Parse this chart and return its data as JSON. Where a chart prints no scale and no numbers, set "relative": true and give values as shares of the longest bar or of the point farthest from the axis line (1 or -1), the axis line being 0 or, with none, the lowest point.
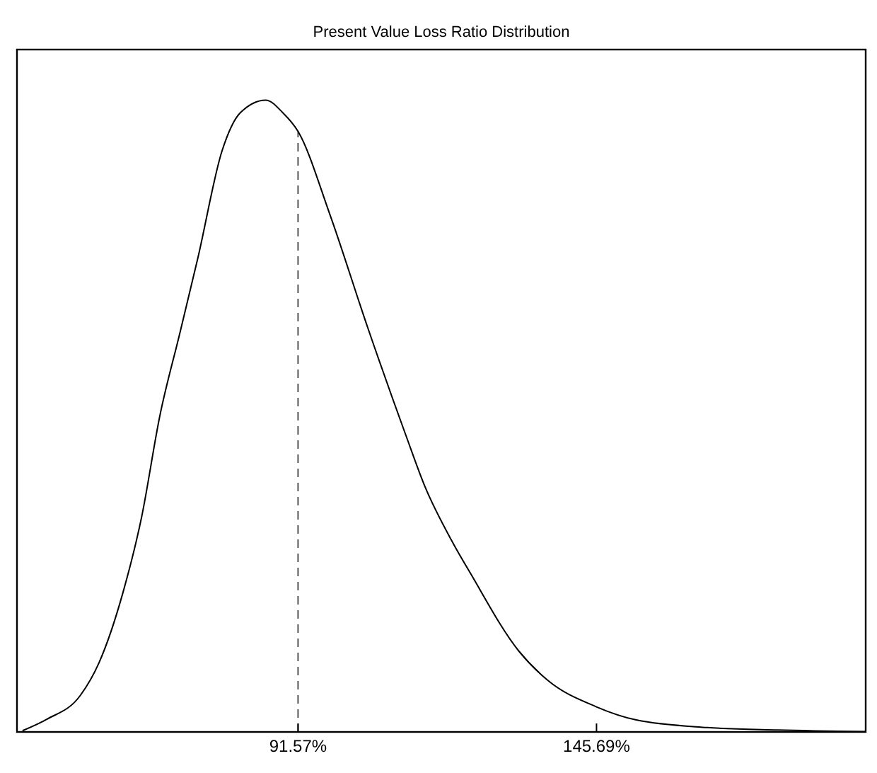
{
  "chart_data": {
    "type": "line",
    "title": "Present Value Loss Ratio Distribution",
    "relative": true,
    "x": [
      41.6,
      46.0,
      52.1,
      55.5,
      59.8,
      63.2,
      66.5,
      70.1,
      73.4,
      77.8,
      81.1,
      85.7,
      88.8,
      91.6,
      97.3,
      104.2,
      111.1,
      114.5,
      119.6,
      122.9,
      131.6,
      136.8,
      145.6,
      152.9,
      165.8,
      178.6,
      194.5
    ],
    "series": [
      {
        "color": "#000000",
        "values": [
          0.002,
          0.02,
          0.058,
          0.11,
          0.22,
          0.34,
          0.5,
          0.63,
          0.75,
          0.92,
          0.98,
          1.0,
          0.98,
          0.95,
          0.82,
          0.64,
          0.47,
          0.39,
          0.3,
          0.25,
          0.128,
          0.082,
          0.04,
          0.019,
          0.007,
          0.003,
          0.0005
        ]
      }
    ],
    "xlim": [
      40.6,
      194.5
    ],
    "xticks": [
      {
        "value": 91.57,
        "label": "91.57%"
      },
      {
        "value": 145.69,
        "label": "145.69%"
      }
    ],
    "ref_lines": [
      {
        "axis": "x",
        "value": 91.57,
        "color": "#555555",
        "line_style": "dashed"
      }
    ],
    "marker": "none",
    "line_style": "solid",
    "grid": false
  }
}
